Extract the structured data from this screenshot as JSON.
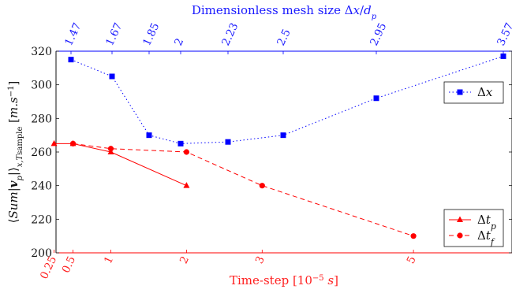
{
  "chart_data": {
    "type": "line",
    "top_axis": {
      "label": "Dimensionless mesh size Δx/d_p",
      "ticks": [
        "1.47",
        "1.67",
        "1.85",
        "2",
        "2.23",
        "2.5",
        "2.95",
        "3.57"
      ]
    },
    "bottom_axis": {
      "label": "Time-step [10⁻⁵ s]",
      "ticks": [
        {
          "label": "0.25",
          "x": 0.25
        },
        {
          "label": "0.5",
          "x": 0.5
        },
        {
          "label": "1",
          "x": 1
        },
        {
          "label": "2",
          "x": 2
        },
        {
          "label": "3",
          "x": 3
        },
        {
          "label": "5",
          "x": 5
        }
      ]
    },
    "ylabel": "⟨Sum|v_p|⟩x,T_sample [m.s⁻¹]",
    "ylim": [
      200,
      320
    ],
    "yticks": [
      200,
      220,
      240,
      260,
      280,
      300,
      320
    ],
    "series": [
      {
        "name": "Δx",
        "axis": "top",
        "color": "#0000ff",
        "style": "dotted",
        "marker": "square",
        "points": [
          {
            "x": "1.47",
            "y": 315
          },
          {
            "x": "1.67",
            "y": 305
          },
          {
            "x": "1.85",
            "y": 270
          },
          {
            "x": "2",
            "y": 265
          },
          {
            "x": "2.23",
            "y": 266
          },
          {
            "x": "2.5",
            "y": 270
          },
          {
            "x": "2.95",
            "y": 292
          },
          {
            "x": "3.57",
            "y": 317
          }
        ]
      },
      {
        "name": "Δt_p",
        "axis": "bottom",
        "color": "#ff0000",
        "style": "solid",
        "marker": "triangle",
        "points": [
          {
            "x": 0.25,
            "y": 265
          },
          {
            "x": 0.5,
            "y": 265
          },
          {
            "x": 1,
            "y": 260
          },
          {
            "x": 2,
            "y": 240
          }
        ]
      },
      {
        "name": "Δt_f",
        "axis": "bottom",
        "color": "#ff0000",
        "style": "dashed",
        "marker": "circle",
        "points": [
          {
            "x": 0.5,
            "y": 265
          },
          {
            "x": 1,
            "y": 262
          },
          {
            "x": 2,
            "y": 260
          },
          {
            "x": 3,
            "y": 240
          },
          {
            "x": 5,
            "y": 210
          }
        ]
      }
    ],
    "legends": [
      {
        "position": "upper-right",
        "entries": [
          "Δx"
        ]
      },
      {
        "position": "lower-right",
        "entries": [
          "Δt_p",
          "Δt_f"
        ]
      }
    ]
  }
}
